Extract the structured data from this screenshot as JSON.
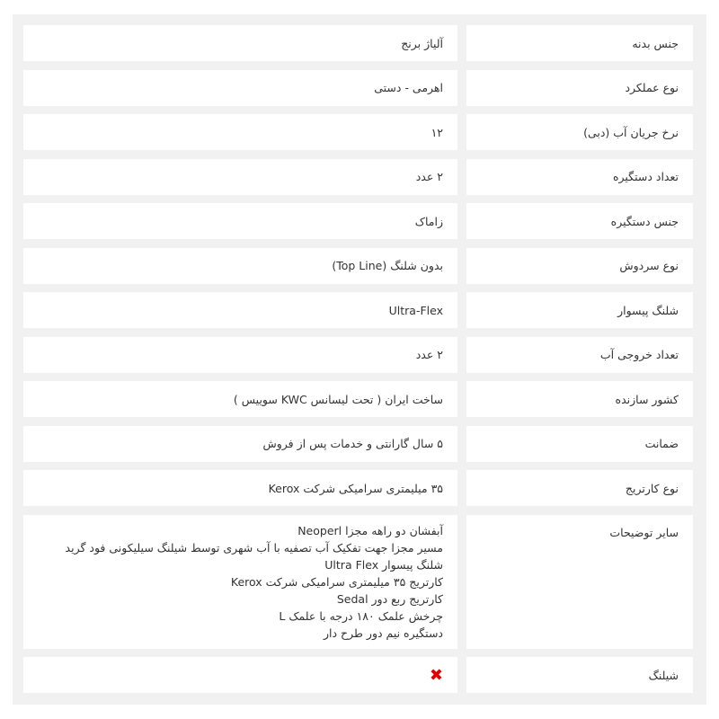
{
  "specs": [
    {
      "label": "جنس بدنه",
      "value": "آلیاژ برنج"
    },
    {
      "label": "نوع عملکرد",
      "value": "اهرمی - دستی"
    },
    {
      "label": "نرخ جریان آب (دبی)",
      "value": "۱۲"
    },
    {
      "label": "تعداد دستگیره",
      "value": "۲ عدد"
    },
    {
      "label": "جنس دستگیره",
      "value": "زاماک"
    },
    {
      "label": "نوع سردوش",
      "value": "بدون شلنگ (Top Line)"
    },
    {
      "label": "شلنگ پیسوار",
      "value": "Ultra-Flex"
    },
    {
      "label": "تعداد خروجی آب",
      "value": "۲ عدد"
    },
    {
      "label": "کشور سازنده",
      "value": "ساخت ایران ( تحت لیسانس KWC سوییس )"
    },
    {
      "label": "ضمانت",
      "value": "۵ سال گارانتی و خدمات پس از فروش"
    },
    {
      "label": "نوع کارتریج",
      "value": "۳۵ میلیمتری سرامیکی شرکت Kerox"
    }
  ],
  "other": {
    "label": "سایر توضیحات",
    "lines": [
      "آبفشان دو راهه مجزا Neoperl",
      "مسیر مجزا جهت تفکیک آب تصفیه با آب شهری توسط شیلنگ سیلیکونی فود گرید",
      "شلنگ پیسوار Ultra Flex",
      "کارتریج ۳۵ میلیمتری سرامیکی شرکت Kerox",
      "کارتریج ربع دور Sedal",
      "چرخش علمک ۱۸۰ درجه با علمک L",
      "دستگیره نیم دور طرح دار"
    ]
  },
  "hose": {
    "label": "شیلنگ",
    "icon": "cross-icon",
    "icon_glyph": "✖",
    "icon_color": "#e00000"
  }
}
